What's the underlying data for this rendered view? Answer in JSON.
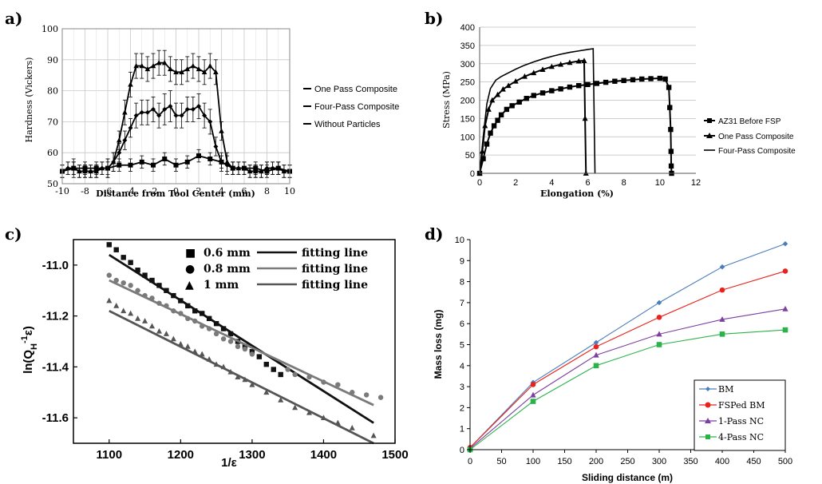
{
  "chart_data": [
    {
      "panel": "a)",
      "type": "line",
      "xlabel": "Distance from Tool Center (mm)",
      "ylabel": "Hardness (Vickers)",
      "xlim": [
        -10,
        10
      ],
      "ylim": [
        50,
        100
      ],
      "xticks": [
        -10,
        -8,
        -6,
        -4,
        -2,
        0,
        2,
        4,
        6,
        8,
        10
      ],
      "yticks": [
        50,
        60,
        70,
        80,
        90,
        100
      ],
      "grid": true,
      "legend_position": "right",
      "series": [
        {
          "name": "One Pass Composite",
          "marker": "diamond",
          "x": [
            -10,
            -9.5,
            -9,
            -8.5,
            -8,
            -7.5,
            -7,
            -6.5,
            -6,
            -5.5,
            -5,
            -4.5,
            -4,
            -3.5,
            -3,
            -2.5,
            -2,
            -1.5,
            -1,
            -0.5,
            0,
            0.5,
            1,
            1.5,
            2,
            2.5,
            3,
            3.5,
            4,
            4.5,
            5,
            5.5,
            6,
            6.5,
            7,
            7.5,
            8,
            8.5,
            9,
            9.5,
            10
          ],
          "y": [
            54,
            55,
            55,
            54,
            54,
            54,
            54,
            55,
            55,
            57,
            60,
            64,
            68,
            72,
            73,
            73,
            74,
            72,
            74,
            75,
            72,
            72,
            74,
            74,
            75,
            72,
            70,
            62,
            57,
            56,
            55,
            55,
            55,
            54,
            54,
            54,
            55,
            55,
            55,
            54,
            54
          ],
          "errors": [
            2,
            2,
            2,
            2,
            2,
            2,
            2,
            2,
            3,
            3,
            3,
            3,
            3,
            4,
            4,
            4,
            4,
            4,
            5,
            5,
            4,
            4,
            4,
            4,
            4,
            4,
            4,
            3,
            3,
            3,
            2,
            2,
            2,
            2,
            2,
            2,
            2,
            2,
            2,
            2,
            2
          ]
        },
        {
          "name": "Four-Pass Composite",
          "marker": "triangle",
          "x": [
            -10,
            -9.5,
            -9,
            -8.5,
            -8,
            -7.5,
            -7,
            -6.5,
            -6,
            -5.5,
            -5,
            -4.5,
            -4,
            -3.5,
            -3,
            -2.5,
            -2,
            -1.5,
            -1,
            -0.5,
            0,
            0.5,
            1,
            1.5,
            2,
            2.5,
            3,
            3.5,
            4,
            4.5,
            5,
            5.5,
            6,
            6.5,
            7,
            7.5,
            8,
            8.5,
            9,
            9.5,
            10
          ],
          "y": [
            54,
            55,
            55,
            54,
            54,
            54,
            54,
            55,
            55,
            57,
            64,
            73,
            82,
            88,
            88,
            87,
            88,
            89,
            89,
            87,
            86,
            86,
            87,
            88,
            87,
            86,
            88,
            86,
            67,
            57,
            55,
            55,
            55,
            54,
            54,
            54,
            55,
            55,
            55,
            54,
            54
          ],
          "errors": [
            2,
            2,
            2,
            2,
            2,
            2,
            2,
            2,
            3,
            3,
            3,
            4,
            4,
            4,
            4,
            4,
            4,
            4,
            4,
            4,
            4,
            4,
            4,
            4,
            4,
            4,
            4,
            4,
            3,
            3,
            2,
            2,
            2,
            2,
            2,
            2,
            2,
            2,
            2,
            2,
            2
          ]
        },
        {
          "name": "Without Particles",
          "marker": "square",
          "x": [
            -10,
            -9,
            -8,
            -7,
            -6,
            -5,
            -4,
            -3,
            -2,
            -1,
            0,
            1,
            2,
            3,
            4,
            5,
            6,
            7,
            8,
            9,
            10
          ],
          "y": [
            54,
            55,
            55,
            55,
            55,
            56,
            56,
            57,
            56,
            58,
            56,
            57,
            59,
            58,
            57,
            55,
            55,
            55,
            54,
            55,
            54
          ],
          "errors": [
            2,
            3,
            2,
            2,
            2,
            2,
            2,
            2,
            2,
            2,
            2,
            2,
            2,
            2,
            2,
            2,
            2,
            2,
            2,
            2,
            2
          ]
        }
      ]
    },
    {
      "panel": "b)",
      "type": "line",
      "xlabel": "Elongation (%)",
      "ylabel": "Stress (MPa)",
      "xlim": [
        0,
        12
      ],
      "ylim": [
        0,
        400
      ],
      "xticks": [
        0,
        2,
        4,
        6,
        8,
        10,
        12
      ],
      "yticks": [
        0,
        50,
        100,
        150,
        200,
        250,
        300,
        350,
        400
      ],
      "grid": true,
      "legend_position": "right",
      "series": [
        {
          "name": "AZ31 Before FSP",
          "marker": "square",
          "x": [
            0,
            0.2,
            0.4,
            0.6,
            0.8,
            1.0,
            1.2,
            1.5,
            1.8,
            2.2,
            2.6,
            3.0,
            3.5,
            4.0,
            4.5,
            5.0,
            5.5,
            6.0,
            6.5,
            7.0,
            7.5,
            8.0,
            8.5,
            9.0,
            9.5,
            10.0,
            10.3,
            10.5,
            10.55,
            10.6,
            10.62,
            10.63,
            10.65
          ],
          "y": [
            0,
            40,
            80,
            110,
            130,
            145,
            160,
            175,
            185,
            195,
            205,
            213,
            220,
            226,
            231,
            236,
            240,
            243,
            246,
            249,
            252,
            254,
            256,
            258,
            259,
            260,
            258,
            235,
            180,
            120,
            60,
            20,
            0
          ]
        },
        {
          "name": "One Pass Composite",
          "marker": "triangle",
          "x": [
            0,
            0.15,
            0.3,
            0.5,
            0.7,
            1.0,
            1.3,
            1.6,
            2.0,
            2.5,
            3.0,
            3.5,
            4.0,
            4.5,
            5.0,
            5.5,
            5.8,
            5.85,
            5.9
          ],
          "y": [
            0,
            60,
            130,
            175,
            200,
            215,
            230,
            240,
            252,
            265,
            275,
            284,
            292,
            298,
            303,
            307,
            308,
            150,
            0
          ]
        },
        {
          "name": "Four-Pass Composite",
          "marker": "none",
          "x": [
            0,
            0.2,
            0.4,
            0.6,
            0.9,
            1.2,
            1.6,
            2.0,
            2.5,
            3.0,
            3.5,
            4.0,
            4.5,
            5.0,
            5.5,
            6.0,
            6.3,
            6.35,
            6.4
          ],
          "y": [
            0,
            100,
            190,
            232,
            255,
            265,
            275,
            285,
            296,
            305,
            313,
            320,
            326,
            331,
            335,
            339,
            341,
            170,
            0
          ]
        }
      ]
    },
    {
      "panel": "c)",
      "type": "scatter",
      "xlabel": "1/ε",
      "ylabel": "ln(Q_H^-1 ε)",
      "xlim": [
        1050,
        1500
      ],
      "ylim": [
        -11.7,
        -10.9
      ],
      "xticks": [
        1100,
        1200,
        1300,
        1400,
        1500
      ],
      "yticks": [
        -11.0,
        -11.2,
        -11.4,
        -11.6
      ],
      "grid": false,
      "legend_position": "top",
      "legend": {
        "row1": {
          "symbol": "■",
          "name": "0.6 mm",
          "fit": "fitting line"
        },
        "row2": {
          "symbol": "●",
          "name": "0.8 mm",
          "fit": "fitting line"
        },
        "row3": {
          "symbol": "▲",
          "name": "1 mm",
          "fit": "fitting line"
        }
      },
      "series": [
        {
          "name": "0.6 mm",
          "marker": "square",
          "color": "#111111",
          "x": [
            1100,
            1110,
            1120,
            1130,
            1140,
            1150,
            1160,
            1170,
            1180,
            1190,
            1200,
            1210,
            1220,
            1230,
            1240,
            1250,
            1260,
            1270,
            1280,
            1290,
            1300,
            1310,
            1320,
            1330,
            1340
          ],
          "y": [
            -10.92,
            -10.94,
            -10.97,
            -10.99,
            -11.02,
            -11.04,
            -11.06,
            -11.08,
            -11.1,
            -11.12,
            -11.14,
            -11.16,
            -11.18,
            -11.19,
            -11.21,
            -11.23,
            -11.25,
            -11.27,
            -11.3,
            -11.32,
            -11.34,
            -11.36,
            -11.39,
            -11.41,
            -11.43
          ],
          "fit": {
            "x": [
              1100,
              1470
            ],
            "y": [
              -10.96,
              -11.62
            ]
          }
        },
        {
          "name": "0.8 mm",
          "marker": "circle",
          "color": "#7a7a7a",
          "x": [
            1100,
            1110,
            1120,
            1130,
            1140,
            1150,
            1160,
            1170,
            1180,
            1190,
            1200,
            1210,
            1220,
            1230,
            1240,
            1250,
            1260,
            1270,
            1280,
            1290,
            1300,
            1350,
            1360,
            1380,
            1400,
            1420,
            1440,
            1460,
            1480
          ],
          "y": [
            -11.04,
            -11.06,
            -11.07,
            -11.08,
            -11.1,
            -11.12,
            -11.13,
            -11.15,
            -11.16,
            -11.18,
            -11.19,
            -11.21,
            -11.22,
            -11.24,
            -11.25,
            -11.27,
            -11.29,
            -11.3,
            -11.32,
            -11.33,
            -11.35,
            -11.41,
            -11.43,
            -11.44,
            -11.46,
            -11.47,
            -11.5,
            -11.51,
            -11.52
          ],
          "fit": {
            "x": [
              1100,
              1470
            ],
            "y": [
              -11.06,
              -11.55
            ]
          }
        },
        {
          "name": "1 mm",
          "marker": "triangle",
          "color": "#555555",
          "x": [
            1100,
            1110,
            1120,
            1130,
            1140,
            1150,
            1160,
            1170,
            1180,
            1190,
            1200,
            1210,
            1220,
            1230,
            1240,
            1250,
            1260,
            1270,
            1280,
            1290,
            1300,
            1320,
            1340,
            1360,
            1380,
            1400,
            1420,
            1440,
            1470
          ],
          "y": [
            -11.14,
            -11.16,
            -11.18,
            -11.19,
            -11.21,
            -11.22,
            -11.24,
            -11.26,
            -11.27,
            -11.29,
            -11.31,
            -11.32,
            -11.34,
            -11.35,
            -11.37,
            -11.39,
            -11.4,
            -11.42,
            -11.44,
            -11.45,
            -11.47,
            -11.5,
            -11.53,
            -11.56,
            -11.58,
            -11.6,
            -11.62,
            -11.64,
            -11.67
          ],
          "fit": {
            "x": [
              1100,
              1470
            ],
            "y": [
              -11.18,
              -11.7
            ]
          }
        }
      ]
    },
    {
      "panel": "d)",
      "type": "line",
      "xlabel": "Sliding distance (m)",
      "ylabel": "Mass loss (mg)",
      "xlim": [
        0,
        500
      ],
      "ylim": [
        0,
        10
      ],
      "xticks": [
        0,
        50,
        100,
        150,
        200,
        250,
        300,
        350,
        400,
        450,
        500
      ],
      "yticks": [
        0,
        1,
        2,
        3,
        4,
        5,
        6,
        7,
        8,
        9,
        10
      ],
      "grid": false,
      "legend_position": "bottom-right",
      "series": [
        {
          "name": "BM",
          "marker": "diamond",
          "color": "#4a7ebb",
          "x": [
            0,
            100,
            200,
            300,
            400,
            500
          ],
          "y": [
            0.1,
            3.2,
            5.1,
            7.0,
            8.7,
            9.8
          ]
        },
        {
          "name": "FSPed BM",
          "marker": "circle",
          "color": "#e8221c",
          "x": [
            0,
            100,
            200,
            300,
            400,
            500
          ],
          "y": [
            0.1,
            3.1,
            4.9,
            6.3,
            7.6,
            8.5
          ]
        },
        {
          "name": "1-Pass NC",
          "marker": "triangle",
          "color": "#7b3fa0",
          "x": [
            0,
            100,
            200,
            300,
            400,
            500
          ],
          "y": [
            0.05,
            2.6,
            4.5,
            5.5,
            6.2,
            6.7
          ]
        },
        {
          "name": "4-Pass NC",
          "marker": "square",
          "color": "#2bb34a",
          "x": [
            0,
            100,
            200,
            300,
            400,
            500
          ],
          "y": [
            0.0,
            2.3,
            4.0,
            5.0,
            5.5,
            5.7
          ]
        }
      ]
    }
  ]
}
